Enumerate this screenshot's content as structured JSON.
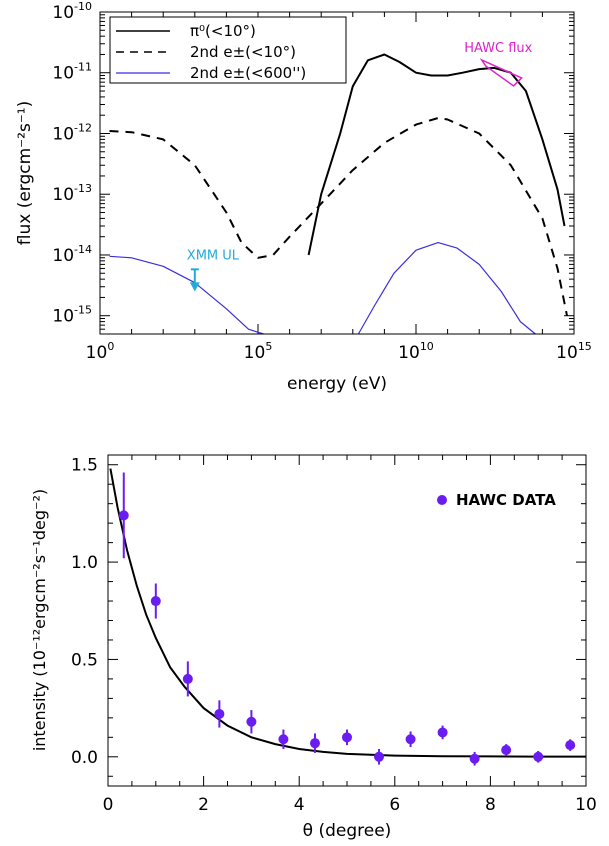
{
  "colors": {
    "black": "#000000",
    "blue": "#3a2ee0",
    "cyan": "#22aadd",
    "magenta": "#dd22cc",
    "purple": "#6a1df0"
  },
  "chart_data": [
    {
      "type": "line",
      "xscale": "log",
      "yscale": "log",
      "xlabel": "energy (eV)",
      "ylabel": "flux (ergcm⁻²s⁻¹)",
      "xlim": [
        1,
        1000000000000000.0
      ],
      "ylim": [
        5e-16,
        1e-10
      ],
      "x_ticks": [
        "10^0",
        "10^5",
        "10^10",
        "10^15"
      ],
      "y_ticks": [
        "10^-15",
        "10^-14",
        "10^-13",
        "10^-12",
        "10^-11",
        "10^-10"
      ],
      "legend_position": "top-left",
      "legend": [
        "π⁰(<10°)",
        "2nd e±(<10°)",
        "2nd e±(<600'')"
      ],
      "series": [
        {
          "name": "π⁰(<10°)",
          "style": "solid",
          "color": "#000000",
          "x": [
            4000000.0,
            10000000.0,
            40000000.0,
            100000000.0,
            300000000.0,
            1000000000.0,
            3000000000.0,
            10000000000.0,
            30000000000.0,
            100000000000.0,
            300000000000.0,
            1000000000000.0,
            3000000000000.0,
            10000000000000.0,
            30000000000000.0,
            100000000000000.0,
            300000000000000.0,
            500000000000000.0
          ],
          "y": [
            1e-14,
            1e-13,
            1e-12,
            6e-12,
            1.6e-11,
            2e-11,
            1.5e-11,
            1e-11,
            9e-12,
            9e-12,
            1e-11,
            1.15e-11,
            1.2e-11,
            1e-11,
            5e-12,
            8e-13,
            1.2e-13,
            3e-14
          ]
        },
        {
          "name": "2nd e±(<10°)",
          "style": "dashed",
          "color": "#000000",
          "x": [
            2,
            10,
            100,
            1000.0,
            10000.0,
            30000.0,
            100000.0,
            300000.0,
            1000000.0,
            10000000.0,
            100000000.0,
            1000000000.0,
            10000000000.0,
            50000000000.0,
            100000000000.0,
            1000000000000.0,
            10000000000000.0,
            100000000000000.0,
            300000000000000.0,
            600000000000000.0
          ],
          "y": [
            1.1e-12,
            1.05e-12,
            8e-13,
            3e-13,
            5e-14,
            1.6e-14,
            9e-15,
            1e-14,
            2e-14,
            7e-14,
            2.5e-13,
            7e-13,
            1.4e-12,
            1.8e-12,
            1.7e-12,
            1e-12,
            3e-13,
            4e-14,
            6e-15,
            1e-15
          ]
        },
        {
          "name": "2nd e±(<600'')",
          "style": "solid",
          "color": "#3a2ee0",
          "x": [
            2,
            10,
            100,
            1000.0,
            10000.0,
            50000.0,
            150000.0
          ],
          "y": [
            9.5e-15,
            9e-15,
            6.5e-15,
            3.5e-15,
            1.3e-15,
            6e-16,
            4e-16
          ],
          "x2": [
            150000000.0,
            500000000.0,
            2000000000.0,
            10000000000.0,
            50000000000.0,
            200000000000.0,
            1000000000000.0,
            5000000000000.0,
            20000000000000.0,
            60000000000000.0
          ],
          "y2": [
            4e-16,
            1.5e-15,
            5e-15,
            1.2e-14,
            1.6e-14,
            1.3e-14,
            7e-15,
            2.5e-15,
            8e-16,
            4e-16
          ]
        }
      ],
      "annotations": [
        {
          "text": "XMM UL",
          "color": "#22aadd",
          "x": 1000.0,
          "y": 5.8e-15
        },
        {
          "text": "HAWC flux",
          "color": "#dd22cc",
          "x": 3000000000000.0,
          "y": 1.2e-11
        }
      ]
    },
    {
      "type": "scatter",
      "xlabel": "θ (degree)",
      "ylabel": "intensity (10⁻¹²ergcm⁻²s⁻¹deg⁻²)",
      "xlim": [
        0,
        10
      ],
      "ylim": [
        -0.15,
        1.55
      ],
      "x_ticks": [
        0,
        2,
        4,
        6,
        8,
        10
      ],
      "y_ticks": [
        0.0,
        0.5,
        1.0,
        1.5
      ],
      "legend_position": "top-right",
      "series": [
        {
          "name": "HAWC DATA",
          "color": "#6a1df0",
          "x": [
            0.33,
            1.0,
            1.67,
            2.33,
            3.0,
            3.67,
            4.33,
            5.0,
            5.67,
            6.33,
            7.0,
            7.67,
            8.33,
            9.0,
            9.67
          ],
          "y": [
            1.24,
            0.8,
            0.4,
            0.22,
            0.18,
            0.09,
            0.07,
            0.1,
            0.0,
            0.09,
            0.125,
            -0.01,
            0.035,
            0.0,
            0.06
          ],
          "err": [
            0.22,
            0.09,
            0.09,
            0.07,
            0.06,
            0.05,
            0.05,
            0.04,
            0.04,
            0.04,
            0.035,
            0.035,
            0.03,
            0.03,
            0.03
          ]
        },
        {
          "name": "model",
          "style": "solid",
          "color": "#000000",
          "x": [
            0.05,
            0.2,
            0.4,
            0.6,
            0.8,
            1.0,
            1.3,
            1.6,
            2.0,
            2.5,
            3.0,
            3.5,
            4.0,
            4.5,
            5.0,
            5.5,
            6.0,
            7.0,
            8.0,
            9.0,
            10.0
          ],
          "y": [
            1.48,
            1.28,
            1.06,
            0.88,
            0.73,
            0.61,
            0.46,
            0.36,
            0.25,
            0.16,
            0.1,
            0.065,
            0.04,
            0.025,
            0.015,
            0.01,
            0.006,
            0.003,
            0.002,
            0.001,
            0.001
          ]
        }
      ],
      "legend": [
        "HAWC DATA"
      ]
    }
  ]
}
